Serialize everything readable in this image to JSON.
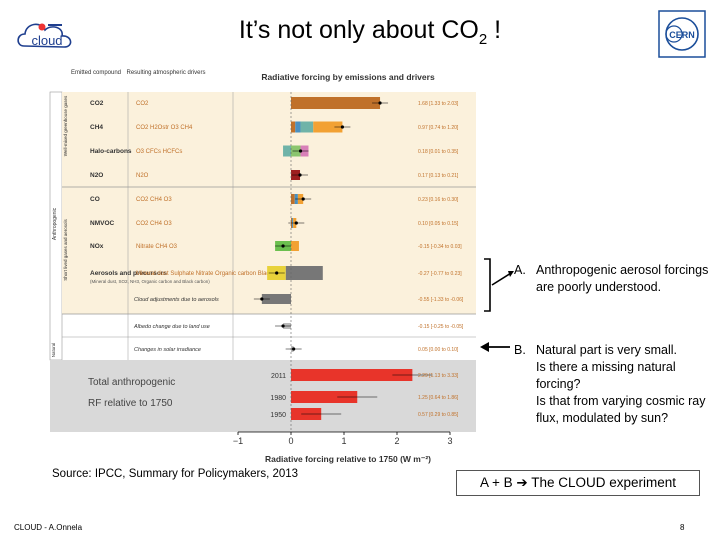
{
  "slide": {
    "title": "It’s not only about CO",
    "title_sub": "2",
    "title_tail": " !",
    "cloud_logo": "cloud",
    "cern_logo": "CERN",
    "annotation_a": {
      "label": "A.",
      "text": "Anthropogenic aerosol forcings are poorly understood."
    },
    "annotation_b": {
      "label": "B.",
      "lines": [
        "Natural part is very small.",
        "Is there a missing natural forcing?",
        "Is that from varying cosmic ray flux, modulated by sun?"
      ]
    },
    "source": "Source: IPCC, Summary for Policymakers, 2013",
    "conclusion": "A + B",
    "conclusion_tail": "The CLOUD experiment",
    "footer": "CLOUD - A.Onnela",
    "page_number": "8"
  },
  "colors": {
    "co2": "#c0712a",
    "ch4_blue": "#4a90c0",
    "ch4_teal": "#6fb3a8",
    "ch4_orange": "#f2a133",
    "halo_pink": "#d880b8",
    "halo_green": "#8bc56e",
    "n2o": "#9e1f1f",
    "nox_green": "#6bbf4e",
    "aerosol_grey": "#777777",
    "aerosol_yellow": "#e8d23a",
    "total_red": "#e8342a",
    "band_yellow": "#fbf1dc",
    "band_grey": "#d9d9d9"
  },
  "chart_data": {
    "type": "bar",
    "title": "Radiative forcing by emissions and drivers",
    "column_headers": [
      "Emitted compound",
      "Resulting atmospheric drivers"
    ],
    "group_labels": [
      "Well-mixed greenhouse gases",
      "Short lived gases and aerosols",
      "Anthropogenic",
      "Natural"
    ],
    "xlabel": "Radiative forcing relative to 1750 (W m⁻²)",
    "xlim": [
      -1,
      3
    ],
    "xticks": [
      "−1",
      "0",
      "1",
      "2",
      "3"
    ],
    "rows": [
      {
        "compound": "CO2",
        "drivers": "CO2",
        "value": 1.68,
        "text": "1.68 [1.33 to 2.03]",
        "parts": [
          {
            "v": 1.68,
            "c": "co2"
          }
        ]
      },
      {
        "compound": "CH4",
        "drivers": "CO2 H2Ostr O3 CH4",
        "value": 0.97,
        "text": "0.97 [0.74 to 1.20]",
        "parts": [
          {
            "v": 0.08,
            "c": "co2"
          },
          {
            "v": 0.1,
            "c": "ch4_blue"
          },
          {
            "v": 0.24,
            "c": "ch4_teal"
          },
          {
            "v": 0.55,
            "c": "ch4_orange"
          }
        ]
      },
      {
        "compound": "Halo-carbons",
        "drivers": "O3 CFCs HCFCs",
        "value": 0.18,
        "text": "0.18 [0.01 to 0.35]",
        "parts": [
          {
            "v": -0.15,
            "c": "ch4_teal"
          },
          {
            "v": 0.18,
            "c": "halo_green"
          },
          {
            "v": 0.15,
            "c": "halo_pink"
          }
        ]
      },
      {
        "compound": "N2O",
        "drivers": "N2O",
        "value": 0.17,
        "text": "0.17 [0.13 to 0.21]",
        "parts": [
          {
            "v": 0.17,
            "c": "n2o"
          }
        ]
      },
      {
        "compound": "CO",
        "drivers": "CO2 CH4 O3",
        "value": 0.23,
        "text": "0.23 [0.16 to 0.30]",
        "parts": [
          {
            "v": 0.07,
            "c": "co2"
          },
          {
            "v": 0.06,
            "c": "ch4_blue"
          },
          {
            "v": 0.1,
            "c": "ch4_orange"
          }
        ]
      },
      {
        "compound": "NMVOC",
        "drivers": "CO2 CH4 O3",
        "value": 0.1,
        "text": "0.10 [0.05 to 0.15]",
        "parts": [
          {
            "v": 0.02,
            "c": "co2"
          },
          {
            "v": 0.02,
            "c": "ch4_blue"
          },
          {
            "v": 0.06,
            "c": "ch4_orange"
          }
        ]
      },
      {
        "compound": "NOx",
        "drivers": "Nitrate CH4 O3",
        "value": -0.15,
        "text": "-0.15 [-0.34 to 0.03]",
        "parts": [
          {
            "v": -0.3,
            "c": "nox_green"
          },
          {
            "v": 0.15,
            "c": "ch4_orange"
          }
        ]
      },
      {
        "compound": "Aerosols and precursors",
        "compound_note": "(Mineral dust, SO2, NH3, Organic carbon and Black carbon)",
        "drivers": "Mineral dust Sulphate Nitrate Organic carbon Black carbon",
        "value": -0.27,
        "text": "-0.27 [-0.77 to 0.23]",
        "parts": [
          {
            "v": -0.1,
            "c": "aerosol_grey"
          },
          {
            "v": -0.35,
            "c": "aerosol_yellow"
          },
          {
            "v": 0.6,
            "c": "aerosol_grey"
          }
        ]
      },
      {
        "compound": "",
        "drivers": "Cloud adjustments due to aerosols",
        "value": -0.55,
        "text": "-0.55 [-1.33 to -0.06]",
        "parts": [
          {
            "v": -0.55,
            "c": "aerosol_grey"
          }
        ]
      },
      {
        "compound": "",
        "drivers": "Albedo change due to land use",
        "value": -0.15,
        "text": "-0.15 [-0.25 to -0.05]",
        "parts": []
      },
      {
        "compound": "",
        "drivers": "Changes in solar irradiance",
        "value": 0.05,
        "text": "0.05 [0.00 to 0.10]",
        "parts": []
      }
    ],
    "totals": {
      "labels": [
        "Total anthropogenic",
        "RF relative to 1750"
      ],
      "rows": [
        {
          "year": "2011",
          "value": 2.29,
          "text": "2.29 [1.13 to 3.33]"
        },
        {
          "year": "1980",
          "value": 1.25,
          "text": "1.25 [0.64 to 1.86]"
        },
        {
          "year": "1950",
          "value": 0.57,
          "text": "0.57 [0.29 to 0.85]"
        }
      ]
    }
  }
}
